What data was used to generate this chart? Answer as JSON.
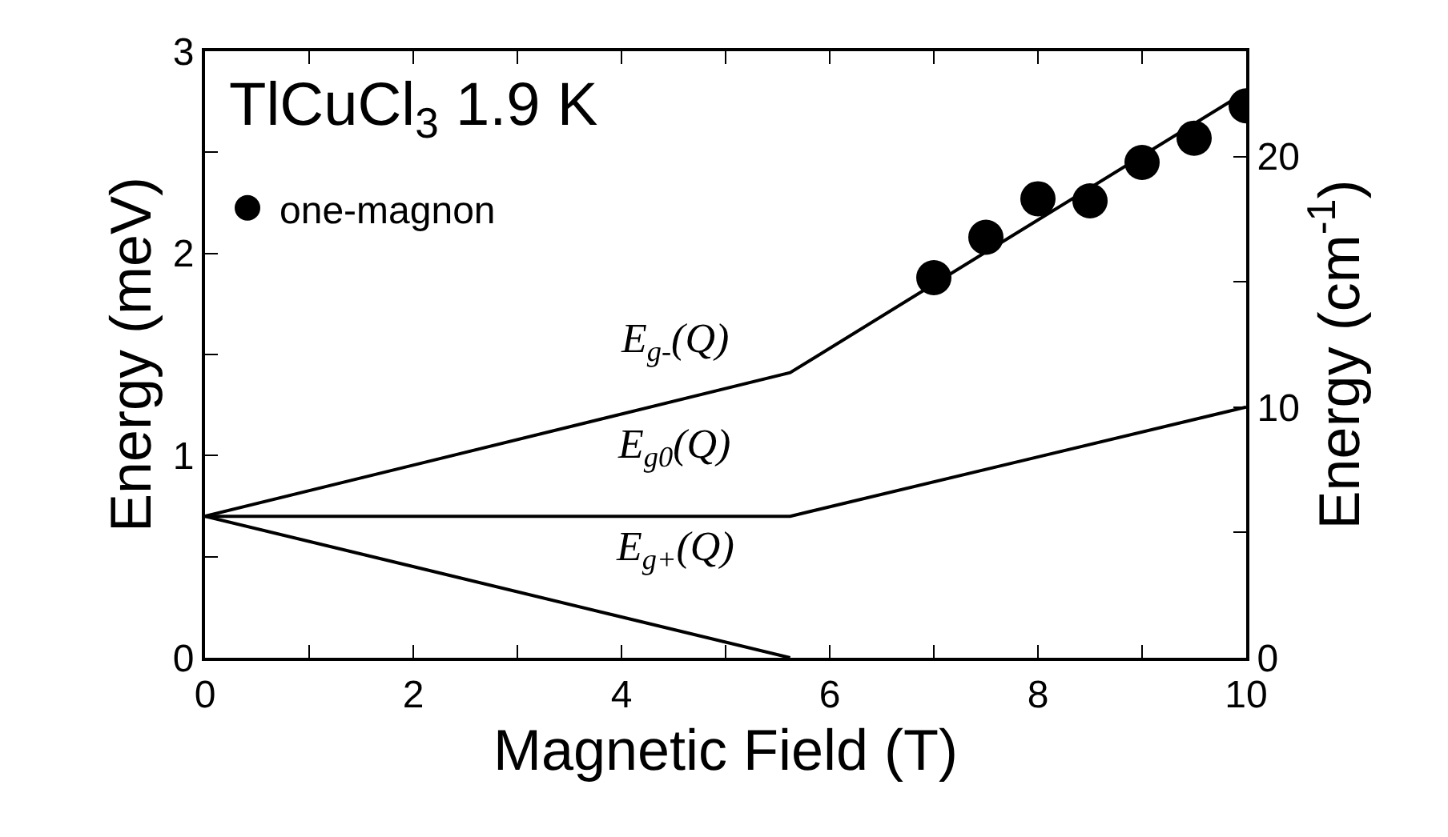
{
  "chart_data": {
    "type": "line",
    "xlabel": "Magnetic Field (T)",
    "ylabel": "Energy (meV)",
    "y2label": "Energy (cm$^{-1}$)",
    "xlim": [
      0,
      10
    ],
    "xticks": [
      0,
      {
        "value": 1,
        "label": null
      },
      2,
      {
        "value": 3,
        "label": null
      },
      4,
      {
        "value": 5,
        "label": null
      },
      6,
      {
        "value": 7,
        "label": null
      },
      8,
      {
        "value": 9,
        "label": null
      },
      10
    ],
    "ylim": [
      0,
      3
    ],
    "yticks": [
      0,
      {
        "value": 0.5,
        "label": null
      },
      1,
      {
        "value": 1.5,
        "label": null
      },
      2,
      {
        "value": 2.5,
        "label": null
      },
      3
    ],
    "y2lim": [
      0,
      24.2
    ],
    "y2ticks": [
      0,
      {
        "value": 5,
        "label": null
      },
      10,
      {
        "value": 15,
        "label": null
      },
      20
    ],
    "legend": "top left",
    "series": [
      {
        "name": "one-magnon",
        "type": "scatter",
        "marker": "circle",
        "color": "#000000",
        "x": [
          7,
          7.5,
          8,
          8.5,
          9,
          9.5,
          10
        ],
        "values": [
          1.88,
          2.08,
          2.27,
          2.26,
          2.45,
          2.57,
          2.73
        ]
      },
      {
        "color": "#000000",
        "x": [
          0,
          5.62,
          10
        ],
        "values": [
          0.7,
          1.41,
          2.8
        ]
      },
      {
        "color": "#000000",
        "x": [
          0,
          5.62,
          10
        ],
        "values": [
          0.7,
          0.7,
          1.24
        ]
      },
      {
        "color": "#000000",
        "x": [
          0,
          5.62
        ],
        "values": [
          0.7,
          0
        ]
      }
    ],
    "annotations": [
      "TlCuCl$_{3}$ 1.9 K",
      "E$_{g-}$(Q)",
      "E$_{g0}$(Q)",
      "E$_{g+}$(Q)"
    ]
  }
}
